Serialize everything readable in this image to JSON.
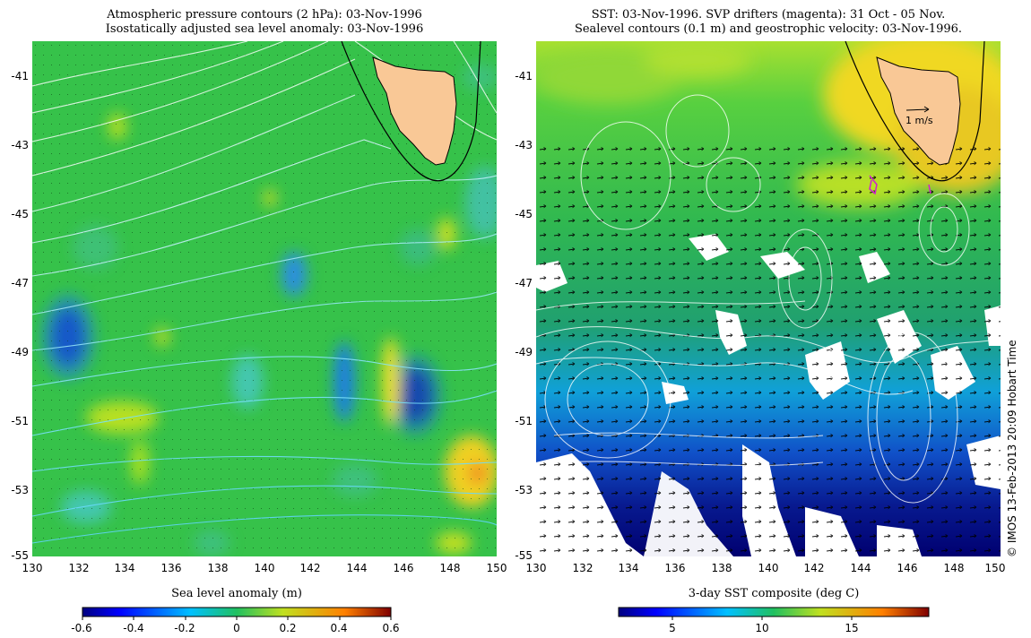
{
  "left_panel": {
    "title_line1": "Atmospheric pressure contours (2 hPa): 03-Nov-1996",
    "title_line2": "Isostatically adjusted sea level anomaly: 03-Nov-1996",
    "colorbar_title": "Sea level anomaly (m)",
    "colorbar_ticks": [
      "-0.6",
      "-0.4",
      "-0.2",
      "0",
      "0.2",
      "0.4",
      "0.6"
    ]
  },
  "right_panel": {
    "title_line1": "SST: 03-Nov-1996. SVP drifters (magenta): 31 Oct - 05 Nov.",
    "title_line2": "Sealevel contours (0.1 m) and geostrophic velocity: 03-Nov-1996.",
    "colorbar_title": "3-day SST composite (deg C)",
    "colorbar_ticks": [
      "5",
      "10",
      "15"
    ],
    "velocity_scale_label": "1 m/s"
  },
  "axes": {
    "x_ticks": [
      "130",
      "132",
      "134",
      "136",
      "138",
      "140",
      "142",
      "144",
      "146",
      "148",
      "150"
    ],
    "y_ticks": [
      "-41",
      "-43",
      "-45",
      "-47",
      "-49",
      "-51",
      "-53",
      "-55"
    ]
  },
  "credit": "© IMOS 13-Feb-2013 20:09 Hobart Time",
  "colors": {
    "land": "#f9c896",
    "background_green": "#36c24a",
    "sla_low": "#000080",
    "sla_high": "#c00000"
  }
}
